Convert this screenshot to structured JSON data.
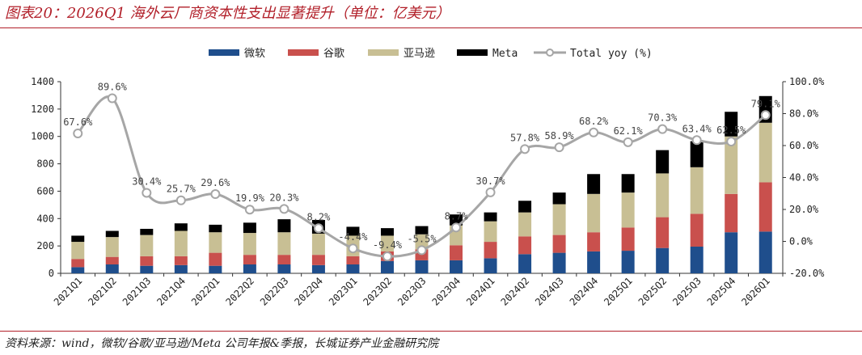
{
  "header": {
    "title": "图表20：2026Q1 海外云厂商资本性支出显著提升（单位：亿美元）"
  },
  "footer": {
    "source": "资料来源：wind，微软/谷歌/亚马逊/Meta 公司年报&季报，长城证券产业金融研究院"
  },
  "colors": {
    "microsoft": "#1f4e8c",
    "google": "#c9504d",
    "amazon": "#c8bf94",
    "meta": "#000000",
    "yoy_line": "#a6a6a6",
    "accent": "#b2202a"
  },
  "chart_data": {
    "type": "bar",
    "stacked": true,
    "categories": [
      "2021Q1",
      "2021Q2",
      "2021Q3",
      "2021Q4",
      "2022Q1",
      "2022Q2",
      "2022Q3",
      "2022Q4",
      "2023Q1",
      "2023Q2",
      "2023Q3",
      "2023Q4",
      "2024Q1",
      "2024Q2",
      "2024Q3",
      "2024Q4",
      "2025Q1",
      "2025Q2",
      "2025Q3",
      "2025Q4",
      "2026Q1"
    ],
    "series": [
      {
        "name": "微软",
        "values": [
          45,
          65,
          55,
          60,
          55,
          65,
          65,
          60,
          65,
          90,
          95,
          95,
          110,
          140,
          150,
          160,
          165,
          185,
          195,
          300,
          305
        ]
      },
      {
        "name": "谷歌",
        "values": [
          60,
          55,
          70,
          65,
          95,
          70,
          70,
          75,
          60,
          70,
          80,
          110,
          120,
          130,
          130,
          140,
          170,
          225,
          240,
          280,
          360
        ]
      },
      {
        "name": "亚马逊",
        "values": [
          125,
          145,
          155,
          185,
          150,
          160,
          165,
          155,
          150,
          115,
          110,
          145,
          150,
          175,
          225,
          280,
          255,
          320,
          340,
          420,
          435
        ]
      },
      {
        "name": "Meta",
        "values": [
          45,
          45,
          45,
          55,
          55,
          75,
          95,
          100,
          65,
          55,
          60,
          80,
          65,
          85,
          85,
          145,
          135,
          170,
          190,
          180,
          195
        ]
      }
    ],
    "yoy": {
      "name": "Total yoy (%)",
      "values": [
        67.6,
        89.6,
        30.4,
        25.7,
        29.6,
        19.9,
        20.3,
        8.2,
        -4.4,
        -9.4,
        -5.5,
        8.7,
        30.7,
        57.8,
        58.9,
        68.2,
        62.1,
        70.3,
        63.4,
        62.5,
        79.1
      ],
      "labels": [
        "67.6%",
        "89.6%",
        "30.4%",
        "25.7%",
        "29.6%",
        "19.9%",
        "20.3%",
        "8.2%",
        "-4.4%",
        "-9.4%",
        "-5.5%",
        "8.7%",
        "30.7%",
        "57.8%",
        "58.9%",
        "68.2%",
        "62.1%",
        "70.3%",
        "63.4%",
        "62.5%",
        "79.1%"
      ]
    },
    "yticks_left": [
      "0",
      "200",
      "400",
      "600",
      "800",
      "1000",
      "1200",
      "1400"
    ],
    "yticks_right": [
      "-20.0%",
      "0.0%",
      "20.0%",
      "40.0%",
      "60.0%",
      "80.0%",
      "100.0%"
    ],
    "ylim": [
      0,
      1400
    ],
    "ylim_right": [
      -20,
      100
    ],
    "legend_position": "top-center",
    "grid": false
  }
}
